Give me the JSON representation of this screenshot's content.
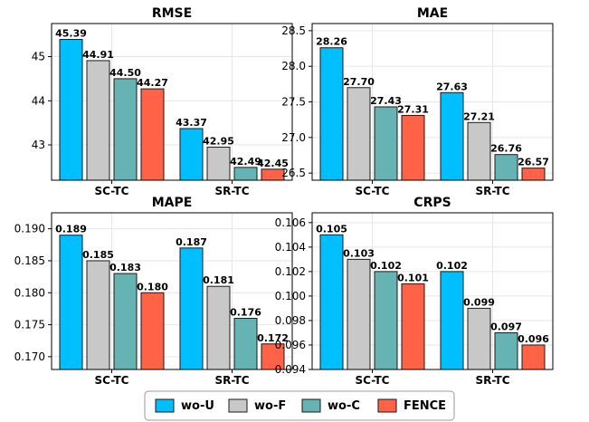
{
  "series_colors": {
    "wo-U": "#00BFFF",
    "wo-F": "#C8C8C8",
    "wo-C": "#66B3B3",
    "FENCE": "#FF6347"
  },
  "legend": {
    "items": [
      {
        "name": "wo-U",
        "color": "#00BFFF"
      },
      {
        "name": "wo-F",
        "color": "#C8C8C8"
      },
      {
        "name": "wo-C",
        "color": "#66B3B3"
      },
      {
        "name": "FENCE",
        "color": "#FF6347"
      }
    ]
  },
  "chart_data": [
    {
      "type": "bar",
      "title": "RMSE",
      "categories": [
        "SC-TC",
        "SR-TC"
      ],
      "series": [
        {
          "name": "wo-U",
          "values": [
            45.39,
            43.37
          ]
        },
        {
          "name": "wo-F",
          "values": [
            44.91,
            42.95
          ]
        },
        {
          "name": "wo-C",
          "values": [
            44.5,
            42.49
          ]
        },
        {
          "name": "FENCE",
          "values": [
            44.27,
            42.45
          ]
        }
      ],
      "value_labels": [
        [
          "45.39",
          "43.37"
        ],
        [
          "44.91",
          "42.95"
        ],
        [
          "44.50",
          "42.49"
        ],
        [
          "44.27",
          "42.45"
        ]
      ],
      "ylim": [
        42.2,
        45.75
      ],
      "yticks": [
        43,
        44,
        45
      ],
      "ytick_labels": [
        "43",
        "44",
        "45"
      ],
      "xlabel": "",
      "ylabel": "",
      "grid": true
    },
    {
      "type": "bar",
      "title": "MAE",
      "categories": [
        "SC-TC",
        "SR-TC"
      ],
      "series": [
        {
          "name": "wo-U",
          "values": [
            28.26,
            27.63
          ]
        },
        {
          "name": "wo-F",
          "values": [
            27.7,
            27.21
          ]
        },
        {
          "name": "wo-C",
          "values": [
            27.43,
            26.76
          ]
        },
        {
          "name": "FENCE",
          "values": [
            27.31,
            26.57
          ]
        }
      ],
      "value_labels": [
        [
          "28.26",
          "27.63"
        ],
        [
          "27.70",
          "27.21"
        ],
        [
          "27.43",
          "26.76"
        ],
        [
          "27.31",
          "26.57"
        ]
      ],
      "ylim": [
        26.4,
        28.6
      ],
      "yticks": [
        26.5,
        27.0,
        27.5,
        28.0,
        28.5
      ],
      "ytick_labels": [
        "26.5",
        "27.0",
        "27.5",
        "28.0",
        "28.5"
      ],
      "xlabel": "",
      "ylabel": "",
      "grid": true
    },
    {
      "type": "bar",
      "title": "MAPE",
      "categories": [
        "SC-TC",
        "SR-TC"
      ],
      "series": [
        {
          "name": "wo-U",
          "values": [
            0.189,
            0.187
          ]
        },
        {
          "name": "wo-F",
          "values": [
            0.185,
            0.181
          ]
        },
        {
          "name": "wo-C",
          "values": [
            0.183,
            0.176
          ]
        },
        {
          "name": "FENCE",
          "values": [
            0.18,
            0.172
          ]
        }
      ],
      "value_labels": [
        [
          "0.189",
          "0.187"
        ],
        [
          "0.185",
          "0.181"
        ],
        [
          "0.183",
          "0.176"
        ],
        [
          "0.180",
          "0.172"
        ]
      ],
      "ylim": [
        0.168,
        0.1925
      ],
      "yticks": [
        0.17,
        0.175,
        0.18,
        0.185,
        0.19
      ],
      "ytick_labels": [
        "0.170",
        "0.175",
        "0.180",
        "0.185",
        "0.190"
      ],
      "xlabel": "",
      "ylabel": "",
      "grid": true
    },
    {
      "type": "bar",
      "title": "CRPS",
      "categories": [
        "SC-TC",
        "SR-TC"
      ],
      "series": [
        {
          "name": "wo-U",
          "values": [
            0.105,
            0.102
          ]
        },
        {
          "name": "wo-F",
          "values": [
            0.103,
            0.099
          ]
        },
        {
          "name": "wo-C",
          "values": [
            0.102,
            0.097
          ]
        },
        {
          "name": "FENCE",
          "values": [
            0.101,
            0.096
          ]
        }
      ],
      "value_labels": [
        [
          "0.105",
          "0.102"
        ],
        [
          "0.103",
          "0.099"
        ],
        [
          "0.102",
          "0.097"
        ],
        [
          "0.101",
          "0.096"
        ]
      ],
      "ylim": [
        0.094,
        0.1068
      ],
      "yticks": [
        0.094,
        0.096,
        0.098,
        0.1,
        0.102,
        0.104,
        0.106
      ],
      "ytick_labels": [
        "0.094",
        "0.096",
        "0.098",
        "0.100",
        "0.102",
        "0.104",
        "0.106"
      ],
      "xlabel": "",
      "ylabel": "",
      "grid": true
    }
  ]
}
